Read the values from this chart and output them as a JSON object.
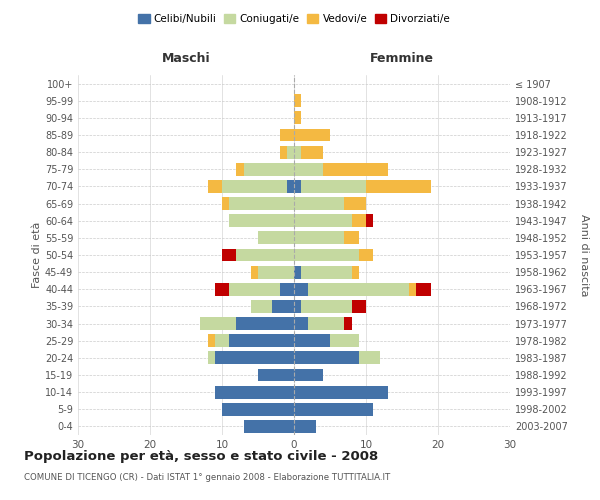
{
  "age_groups": [
    "0-4",
    "5-9",
    "10-14",
    "15-19",
    "20-24",
    "25-29",
    "30-34",
    "35-39",
    "40-44",
    "45-49",
    "50-54",
    "55-59",
    "60-64",
    "65-69",
    "70-74",
    "75-79",
    "80-84",
    "85-89",
    "90-94",
    "95-99",
    "100+"
  ],
  "birth_years": [
    "2003-2007",
    "1998-2002",
    "1993-1997",
    "1988-1992",
    "1983-1987",
    "1978-1982",
    "1973-1977",
    "1968-1972",
    "1963-1967",
    "1958-1962",
    "1953-1957",
    "1948-1952",
    "1943-1947",
    "1938-1942",
    "1933-1937",
    "1928-1932",
    "1923-1927",
    "1918-1922",
    "1913-1917",
    "1908-1912",
    "≤ 1907"
  ],
  "males": {
    "celibi": [
      7,
      10,
      11,
      5,
      11,
      9,
      8,
      3,
      2,
      0,
      0,
      0,
      0,
      0,
      1,
      0,
      0,
      0,
      0,
      0,
      0
    ],
    "coniugati": [
      0,
      0,
      0,
      0,
      1,
      2,
      5,
      3,
      7,
      5,
      8,
      5,
      9,
      9,
      9,
      7,
      1,
      0,
      0,
      0,
      0
    ],
    "vedovi": [
      0,
      0,
      0,
      0,
      0,
      1,
      0,
      0,
      0,
      1,
      0,
      0,
      0,
      1,
      2,
      1,
      1,
      2,
      0,
      0,
      0
    ],
    "divorziati": [
      0,
      0,
      0,
      0,
      0,
      0,
      0,
      0,
      2,
      0,
      2,
      0,
      0,
      0,
      0,
      0,
      0,
      0,
      0,
      0,
      0
    ]
  },
  "females": {
    "nubili": [
      3,
      11,
      13,
      4,
      9,
      5,
      2,
      1,
      2,
      1,
      0,
      0,
      0,
      0,
      1,
      0,
      0,
      0,
      0,
      0,
      0
    ],
    "coniugate": [
      0,
      0,
      0,
      0,
      3,
      4,
      5,
      7,
      14,
      7,
      9,
      7,
      8,
      7,
      9,
      4,
      1,
      0,
      0,
      0,
      0
    ],
    "vedove": [
      0,
      0,
      0,
      0,
      0,
      0,
      0,
      0,
      1,
      1,
      2,
      2,
      2,
      3,
      9,
      9,
      3,
      5,
      1,
      1,
      0
    ],
    "divorziate": [
      0,
      0,
      0,
      0,
      0,
      0,
      1,
      2,
      2,
      0,
      0,
      0,
      1,
      0,
      0,
      0,
      0,
      0,
      0,
      0,
      0
    ]
  },
  "colors": {
    "celibi": "#4472a8",
    "coniugati": "#c5d9a0",
    "vedovi": "#f4b942",
    "divorziati": "#c00000"
  },
  "xlim": 30,
  "title": "Popolazione per età, sesso e stato civile - 2008",
  "subtitle": "COMUNE DI TICENGO (CR) - Dati ISTAT 1° gennaio 2008 - Elaborazione TUTTITALIA.IT",
  "ylabel_left": "Fasce di età",
  "ylabel_right": "Anni di nascita",
  "xlabel_males": "Maschi",
  "xlabel_females": "Femmine",
  "legend_labels": [
    "Celibi/Nubili",
    "Coniugati/e",
    "Vedovi/e",
    "Divorziati/e"
  ],
  "bg_color": "#ffffff",
  "grid_color": "#cccccc"
}
